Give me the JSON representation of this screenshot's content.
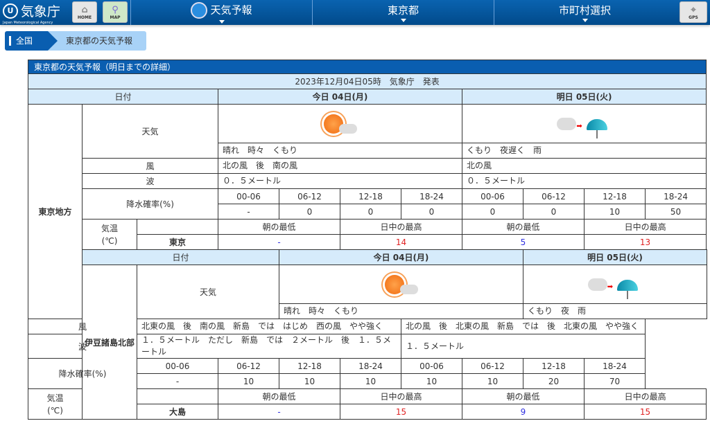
{
  "header": {
    "logo_jp": "気象庁",
    "logo_en": "Japan Meteorological Agency",
    "home": "HOME",
    "map": "MAP",
    "nav": [
      "天気予報",
      "東京都",
      "市町村選択"
    ],
    "gps": "GPS"
  },
  "breadcrumb": [
    "全国",
    "東京都の天気予報"
  ],
  "table": {
    "title": "東京都の天気予報（明日までの詳細）",
    "issued": "2023年12月04日05時　気象庁　発表",
    "labels": {
      "date": "日付",
      "weather": "天気",
      "wind": "風",
      "wave": "波",
      "pop": "降水確率(%)",
      "temp": "気温\n(℃)",
      "min": "朝の最低",
      "max": "日中の最高"
    },
    "days": [
      "今日 04日(月)",
      "明日 05日(火)"
    ],
    "periods": [
      "00-06",
      "06-12",
      "12-18",
      "18-24"
    ],
    "regions": [
      {
        "name": "東京地方",
        "weather_icons": [
          "sunny-then-cloudy",
          "cloudy-then-rain"
        ],
        "weather": [
          "晴れ　時々　くもり",
          "くもり　夜遅く　雨"
        ],
        "wind": [
          "北の風　後　南の風",
          "北の風"
        ],
        "wave": [
          "０．５メートル",
          "０．５メートル"
        ],
        "pop": [
          "-",
          "0",
          "0",
          "0",
          "0",
          "0",
          "10",
          "50"
        ],
        "city": "東京",
        "temps": [
          "-",
          "14",
          "5",
          "13"
        ]
      },
      {
        "name": "伊豆諸島北部",
        "weather_icons": [
          "sunny-then-cloudy",
          "cloudy-then-rain"
        ],
        "weather": [
          "晴れ　時々　くもり",
          "くもり　夜　雨"
        ],
        "wind": [
          "北東の風　後　南の風　新島　では　はじめ　西の風　やや強く",
          "北の風　後　北東の風　新島　では　後　北東の風　やや強く"
        ],
        "wave": [
          "１．５メートル　ただし　新島　では　２メートル　後　１．５メートル",
          "１．５メートル"
        ],
        "pop": [
          "-",
          "10",
          "10",
          "10",
          "10",
          "10",
          "20",
          "70"
        ],
        "city": "大島",
        "temps": [
          "-",
          "15",
          "9",
          "15"
        ]
      }
    ]
  },
  "colors": {
    "brand": "#0a5eb0",
    "header_bg": "#d6ebfb",
    "min_temp": "#2e2ee0",
    "max_temp": "#e02222"
  }
}
